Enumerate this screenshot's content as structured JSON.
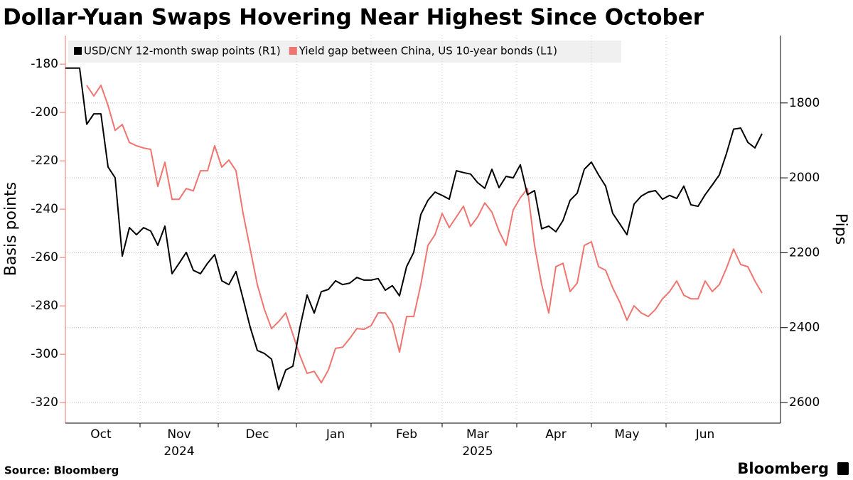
{
  "chart_data": {
    "type": "line",
    "title": "Dollar-Yuan Swaps Hovering Near Highest Since October",
    "y_label": "Basis points",
    "y2_label": "Pips",
    "source": "Source: Bloomberg",
    "brand": "Bloomberg",
    "categories": [
      null,
      null,
      null,
      null,
      null,
      "Oct",
      null,
      null,
      null,
      null,
      null,
      null,
      null,
      null,
      null,
      null,
      "Nov",
      null,
      null,
      null,
      null,
      null,
      null,
      null,
      null,
      null,
      null,
      "Dec",
      null,
      null,
      null,
      null,
      null,
      null,
      null,
      null,
      null,
      null,
      "Jan",
      null,
      null,
      null,
      null,
      null,
      null,
      null,
      null,
      null,
      "Feb",
      null,
      null,
      null,
      null,
      null,
      null,
      null,
      null,
      null,
      "Mar",
      null,
      null,
      null,
      null,
      null,
      null,
      null,
      null,
      null,
      null,
      "Apr",
      null,
      null,
      null,
      null,
      null,
      null,
      null,
      null,
      null,
      "May",
      null,
      null,
      null,
      null,
      null,
      null,
      null,
      null,
      null,
      null,
      "Jun",
      null,
      null,
      null,
      null,
      null,
      null,
      null,
      null
    ],
    "year_labels": [
      {
        "value": 16,
        "label": "2024"
      },
      {
        "value": 58,
        "label": "2025"
      }
    ],
    "series": [
      {
        "name": "USD/CNY 12-month swap points (R1)",
        "color": "#000000",
        "axis": "y2",
        "values": [
          1707,
          1707,
          1707,
          1857,
          1829,
          1829,
          1971,
          2000,
          2209,
          2133,
          2152,
          2133,
          2142,
          2180,
          2129,
          2256,
          2228,
          2199,
          2247,
          2256,
          2228,
          2205,
          2275,
          2285,
          2250,
          2323,
          2399,
          2461,
          2469,
          2484,
          2566,
          2513,
          2503,
          2399,
          2313,
          2361,
          2304,
          2298,
          2275,
          2285,
          2281,
          2266,
          2273,
          2273,
          2269,
          2300,
          2288,
          2315,
          2237,
          2199,
          2098,
          2060,
          2038,
          2047,
          2057,
          1981,
          1986,
          1990,
          2013,
          2028,
          1977,
          2026,
          1996,
          2000,
          1965,
          2045,
          2034,
          2136,
          2129,
          2144,
          2114,
          2060,
          2041,
          1977,
          1958,
          1992,
          2022,
          2095,
          2123,
          2152,
          2070,
          2049,
          2038,
          2034,
          2057,
          2047,
          2055,
          2022,
          2072,
          2076,
          2045,
          2019,
          1992,
          1935,
          1870,
          1867,
          1905,
          1920,
          1882
        ]
      },
      {
        "name": "Yield gap between China, US 10-year bonds (L1)",
        "color": "#f07470",
        "axis": "y",
        "values": [
          null,
          null,
          null,
          -188.8,
          -193.2,
          -188.8,
          -197.1,
          -207.4,
          -205.0,
          -212.4,
          -213.8,
          -214.7,
          -215.3,
          -230.6,
          -220.6,
          -235.9,
          -235.9,
          -231.5,
          -232.4,
          -224.1,
          -224.1,
          -213.8,
          -222.6,
          -219.7,
          -224.1,
          -241.8,
          -256.5,
          -271.2,
          -281.5,
          -289.4,
          -286.5,
          -282.9,
          -291.8,
          -300.6,
          -307.9,
          -307.1,
          -311.8,
          -306.5,
          -297.6,
          -297.1,
          -293.5,
          -289.4,
          -289.7,
          -288.2,
          -282.9,
          -282.9,
          -287.4,
          -299.1,
          -284.4,
          -284.4,
          -271.2,
          -255.0,
          -250.6,
          -241.8,
          -247.6,
          -243.2,
          -238.8,
          -247.1,
          -243.2,
          -237.4,
          -241.2,
          -249.1,
          -255.0,
          -240.3,
          -235.3,
          -231.5,
          -255.0,
          -271.2,
          -282.9,
          -263.8,
          -262.4,
          -274.1,
          -270.6,
          -255.0,
          -253.5,
          -263.8,
          -265.3,
          -272.6,
          -278.5,
          -285.9,
          -280.0,
          -282.9,
          -284.4,
          -281.5,
          -277.1,
          -274.1,
          -269.7,
          -275.6,
          -277.1,
          -277.1,
          -269.7,
          -274.1,
          -271.2,
          -264.4,
          -256.5,
          -262.9,
          -263.8,
          -269.7,
          -274.7
        ]
      }
    ],
    "ylim": [
      -328.5,
      -168.2
    ],
    "yticks": [
      -320,
      -300,
      -280,
      -260,
      -240,
      -220,
      -200,
      -180
    ],
    "y2lim": [
      2655,
      1620
    ],
    "y2ticks": [
      1800,
      2000,
      2200,
      2400,
      2600
    ],
    "grid": true,
    "legend": "top-left"
  }
}
